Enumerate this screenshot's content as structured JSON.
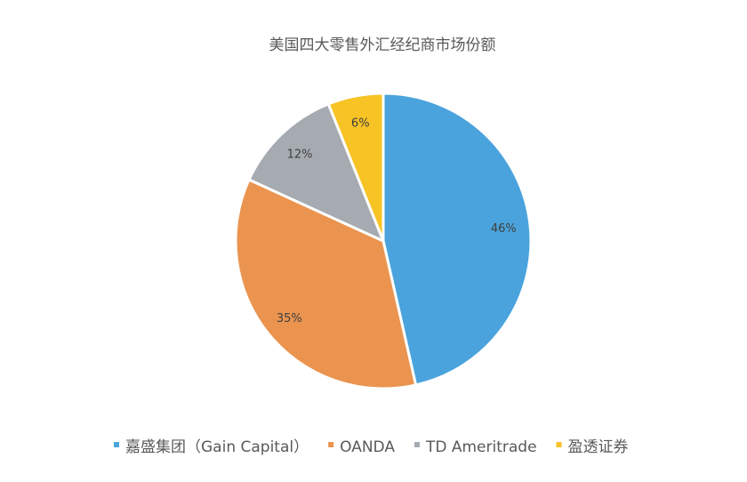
{
  "chart_data": {
    "type": "pie",
    "title": "美国四大零售外汇经纪商市场份额",
    "categories": [
      "嘉盛集团（Gain Capital）",
      "OANDA",
      "TD Ameritrade",
      "盈透证券"
    ],
    "values": [
      46,
      35,
      12,
      6
    ],
    "labels": [
      "46%",
      "35%",
      "12%",
      "6%"
    ],
    "colors": [
      "#4aa3dc",
      "#ea9450",
      "#a6abb2",
      "#f7c325"
    ],
    "start_angle_deg": 0,
    "direction": "clockwise",
    "legend_position": "bottom"
  }
}
